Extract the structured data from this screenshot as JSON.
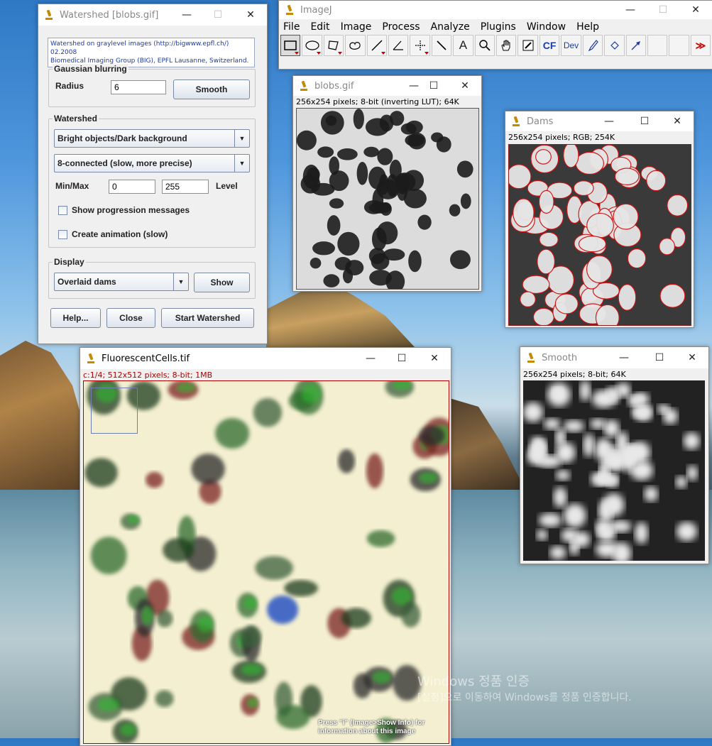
{
  "watershed_dialog": {
    "title": "Watershed [blobs.gif]",
    "info_line1": "Watershed on graylevel images (http://bigwww.epfl.ch/) 02.2008",
    "info_line2": "Biomedical Imaging Group (BIG), EPFL Lausanne, Switzerland.",
    "gaussian_group": "Gaussian blurring",
    "radius_label": "Radius",
    "radius_value": "6",
    "smooth_button": "Smooth",
    "watershed_group": "Watershed",
    "mode_selected": "Bright objects/Dark background",
    "connectivity_selected": "8-connected (slow, more precise)",
    "minmax_label": "Min/Max",
    "min_value": "0",
    "max_value": "255",
    "level_label": "Level",
    "show_progress_label": "Show progression messages",
    "create_animation_label": "Create animation (slow)",
    "display_group": "Display",
    "display_selected": "Overlaid dams",
    "show_button": "Show",
    "help_button": "Help...",
    "close_button": "Close",
    "start_button": "Start Watershed"
  },
  "imagej": {
    "title": "ImageJ",
    "menu": [
      "File",
      "Edit",
      "Image",
      "Process",
      "Analyze",
      "Plugins",
      "Window",
      "Help"
    ],
    "toolbar_cf": "CF",
    "toolbar_dev": "Dev",
    "toolbar_text": "A"
  },
  "blobs": {
    "title": "blobs.gif",
    "info": "256x254 pixels; 8-bit (inverting LUT); 64K"
  },
  "dams": {
    "title": "Dams",
    "info": "256x254 pixels; RGB; 254K"
  },
  "smooth": {
    "title": "Smooth",
    "info": "256x254 pixels; 8-bit; 64K"
  },
  "fluorescent": {
    "title": "FluorescentCells.tif",
    "info": "c:1/4; 512x512 pixels; 8-bit; 1MB",
    "hint_line1": "Press \"i\" (Image>Show Info) for",
    "hint_line2": "information about this image"
  },
  "watermark": {
    "line1": "Windows 정품 인증",
    "line2": "[설정]으로 이동하여 Windows를 정품 인증합니다."
  },
  "window_controls": {
    "minimize": "—",
    "maximize": "☐",
    "close": "✕"
  },
  "colors": {
    "dam_red": "#d01010",
    "info_red": "#b00000",
    "link_blue": "#1e3aa0"
  }
}
